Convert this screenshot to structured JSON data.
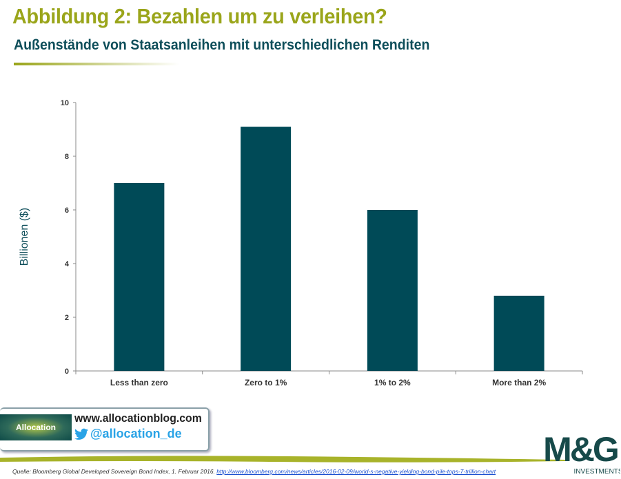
{
  "header": {
    "title": "Abbildung 2: Bezahlen um zu verleihen?",
    "subtitle": "Außenstände von Staatsanleihen mit unterschiedlichen Renditen"
  },
  "chart_data": {
    "type": "bar",
    "title": "",
    "xlabel": "",
    "ylabel": "Billionen ($)",
    "categories": [
      "Less than zero",
      "Zero to 1%",
      "1%  to 2%",
      "More than 2%"
    ],
    "values": [
      7.0,
      9.1,
      6.0,
      2.8
    ],
    "ylim": [
      0,
      10
    ],
    "yticks": [
      "0",
      "2",
      "4",
      "6",
      "8",
      "10"
    ],
    "grid": false,
    "bar_color": "#004a57"
  },
  "footer": {
    "blog_logo_text": "Allocation",
    "blog_url": "www.allocationblog.com",
    "twitter_handle": "@allocation_de",
    "source_prefix": "Quelle: Bloomberg  Global Developed Sovereign Bond Index, 1. Februar 2016. ",
    "source_link": "http://www.bloomberg.com/news/articles/2016-02-09/world-s-negative-yielding-bond-pile-tops-7-trillion-chart",
    "mg_logo_text": "M&G",
    "mg_logo_sub": "INVESTMENTS"
  }
}
